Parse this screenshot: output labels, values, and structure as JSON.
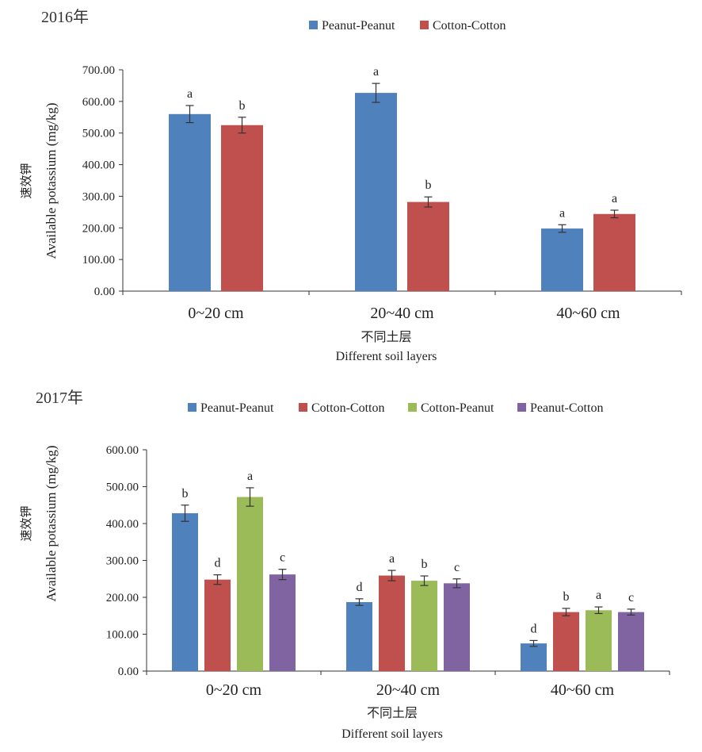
{
  "chart_data": [
    {
      "type": "bar",
      "year_label": "2016年",
      "categories": [
        "0~20 cm",
        "20~40 cm",
        "40~60 cm"
      ],
      "xlabel_cn": "不同土层",
      "xlabel": "Different soil layers",
      "ylabel_cn": "速效钾",
      "ylabel": "Available potassium (mg/kg)",
      "ylim": [
        0,
        700
      ],
      "yticks": [
        "0.00",
        "100.00",
        "200.00",
        "300.00",
        "400.00",
        "500.00",
        "600.00",
        "700.00"
      ],
      "legend_position": "top-right",
      "series": [
        {
          "name": "Peanut-Peanut",
          "color": "#4f81bd",
          "values": [
            560,
            627,
            198
          ],
          "errors": [
            27,
            30,
            12
          ],
          "letters": [
            "a",
            "a",
            "a"
          ]
        },
        {
          "name": "Cotton-Cotton",
          "color": "#c0504d",
          "values": [
            525,
            282,
            244
          ],
          "errors": [
            25,
            16,
            12
          ],
          "letters": [
            "b",
            "b",
            "a"
          ]
        }
      ]
    },
    {
      "type": "bar",
      "year_label": "2017年",
      "categories": [
        "0~20 cm",
        "20~40 cm",
        "40~60 cm"
      ],
      "xlabel_cn": "不同土层",
      "xlabel": "Different soil layers",
      "ylabel_cn": "速效钾",
      "ylabel": "Available potassium (mg/kg)",
      "ylim": [
        0,
        600
      ],
      "yticks": [
        "0.00",
        "100.00",
        "200.00",
        "300.00",
        "400.00",
        "500.00",
        "600.00"
      ],
      "legend_position": "top",
      "series": [
        {
          "name": "Peanut-Peanut",
          "color": "#4f81bd",
          "values": [
            428,
            187,
            75
          ],
          "errors": [
            22,
            9,
            8
          ],
          "letters": [
            "b",
            "d",
            "d"
          ]
        },
        {
          "name": "Cotton-Cotton",
          "color": "#c0504d",
          "values": [
            248,
            259,
            160
          ],
          "errors": [
            13,
            14,
            10
          ],
          "letters": [
            "d",
            "a",
            "b"
          ]
        },
        {
          "name": "Cotton-Peanut",
          "color": "#9bbb59",
          "values": [
            472,
            245,
            165
          ],
          "errors": [
            25,
            13,
            9
          ],
          "letters": [
            "a",
            "b",
            "a"
          ]
        },
        {
          "name": "Peanut-Cotton",
          "color": "#8064a2",
          "values": [
            262,
            238,
            160
          ],
          "errors": [
            14,
            12,
            8
          ],
          "letters": [
            "c",
            "c",
            "c"
          ]
        }
      ]
    }
  ]
}
